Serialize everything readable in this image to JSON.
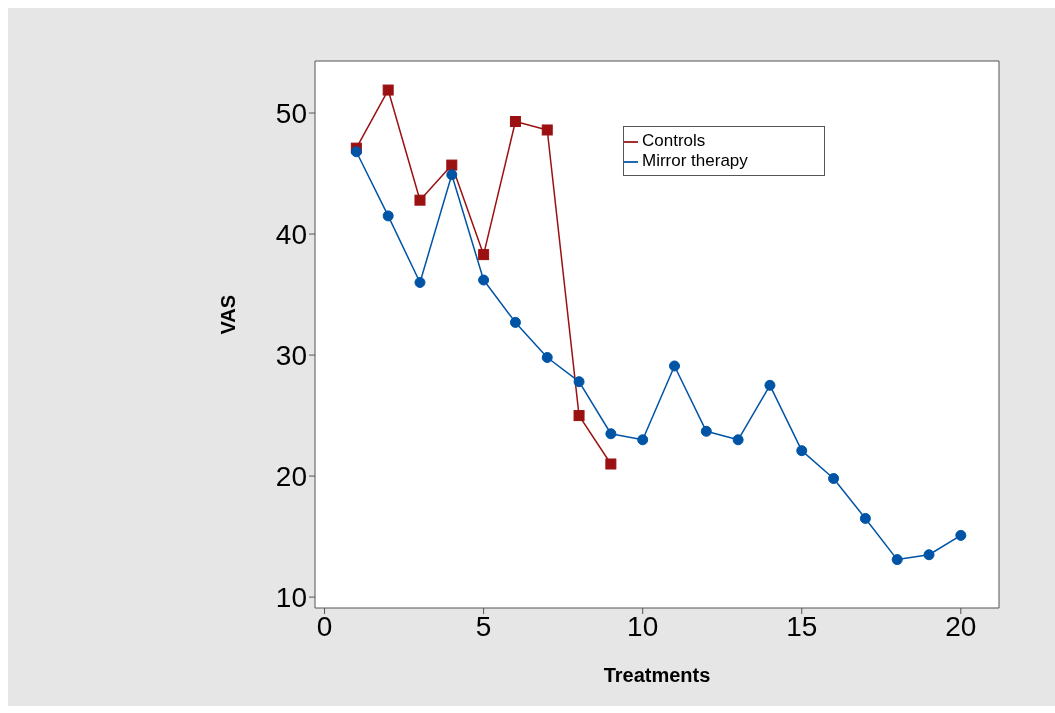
{
  "chart_data": {
    "type": "line",
    "xlabel": "Treatments",
    "ylabel": "VAS",
    "xlim": [
      -0.3,
      21.2
    ],
    "xticks": [
      0,
      5,
      10,
      15,
      20
    ],
    "ylim": [
      9.1,
      54.3
    ],
    "yticks": [
      10,
      20,
      30,
      40,
      50
    ],
    "grid": false,
    "legend": "top right",
    "line_style": "solid",
    "series": [
      {
        "name": "Mirror therapy",
        "color": "#0054a6",
        "marker": "circle",
        "x": [
          1,
          2,
          3,
          4,
          5,
          6,
          7,
          8,
          9,
          10,
          11,
          12,
          13,
          14,
          15,
          16,
          17,
          18,
          19,
          20
        ],
        "values": [
          46.8,
          41.5,
          36.0,
          44.9,
          36.2,
          32.7,
          29.8,
          27.8,
          23.5,
          23.0,
          29.1,
          23.7,
          23.0,
          27.5,
          22.1,
          19.8,
          16.5,
          13.1,
          13.5,
          15.1
        ]
      },
      {
        "name": "Controls",
        "color": "#9b1111",
        "marker": "square",
        "x": [
          1,
          2,
          3,
          4,
          5,
          6,
          7,
          8,
          9
        ],
        "values": [
          47.1,
          51.9,
          42.8,
          45.7,
          38.3,
          49.3,
          48.6,
          25.0,
          21.0
        ]
      }
    ]
  }
}
